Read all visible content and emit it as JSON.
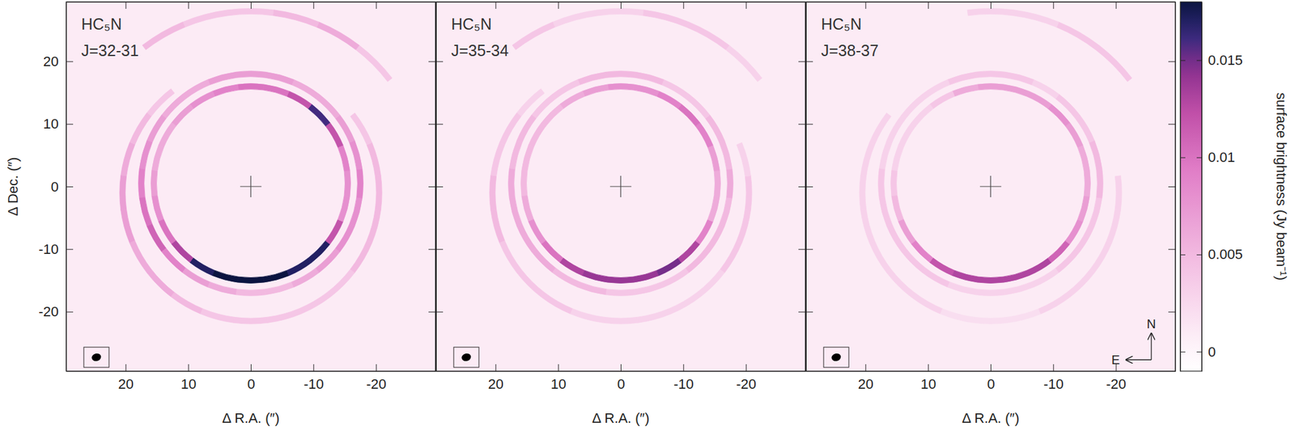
{
  "chart_data": [
    {
      "type": "map",
      "title": "HC₅N",
      "subtitle": "J=32-31",
      "xlabel": "Δ R.A. (″)",
      "ylabel": "Δ Dec. (″)",
      "xlim": [
        29.5,
        -29.5
      ],
      "ylim": [
        -29.5,
        29.5
      ],
      "xticks": [
        20,
        10,
        0,
        -10,
        -20
      ],
      "yticks": [
        -20,
        -10,
        0,
        10,
        20
      ],
      "background_level": 0.001,
      "beam": [
        1.5,
        1.2
      ],
      "position_angles": [
        0,
        15,
        30,
        45,
        60,
        75,
        90,
        105,
        120,
        135,
        150,
        165,
        180,
        195,
        210,
        225,
        240,
        255,
        270,
        285,
        300,
        315,
        330,
        345
      ],
      "shells": [
        {
          "radius": 15.5,
          "center": [
            0,
            0.5
          ],
          "brightness": [
            0.01,
            0.009,
            0.008,
            0.007,
            0.006,
            0.006,
            0.007,
            0.008,
            0.01,
            0.013,
            0.017,
            0.018,
            0.018,
            0.018,
            0.017,
            0.017,
            0.012,
            0.008,
            0.008,
            0.009,
            0.012,
            0.016,
            0.012,
            0.01
          ]
        },
        {
          "radius": 17.5,
          "center": [
            0,
            0.5
          ],
          "brightness": [
            0.007,
            0.007,
            0.006,
            0.006,
            0.007,
            0.008,
            0.009,
            0.01,
            0.011,
            0.009,
            0.007,
            0.006,
            0.005,
            0.005,
            0.006,
            0.007,
            0.008,
            0.008,
            0.009,
            0.008,
            0.007,
            0.006,
            0.006,
            0.007
          ]
        },
        {
          "radius": 20.5,
          "center": [
            0,
            -1
          ],
          "brightness": [
            null,
            null,
            null,
            0.004,
            0.005,
            0.006,
            0.007,
            0.007,
            0.006,
            0.006,
            0.005,
            0.004,
            0.004,
            0.004,
            0.004,
            0.004,
            0.005,
            0.005,
            0.005,
            0.005,
            0.004,
            null,
            null,
            null
          ]
        },
        {
          "radius": 28,
          "center": [
            0,
            0
          ],
          "brightness": [
            0.004,
            0.004,
            0.005,
            null,
            null,
            null,
            null,
            null,
            null,
            null,
            null,
            null,
            null,
            null,
            null,
            null,
            null,
            null,
            null,
            null,
            null,
            0.004,
            0.006,
            0.005
          ]
        }
      ]
    },
    {
      "type": "map",
      "title": "HC₅N",
      "subtitle": "J=35-34",
      "xlabel": "Δ R.A. (″)",
      "tick_labels": "x",
      "xlim": [
        29.5,
        -29.5
      ],
      "ylim": [
        -29.5,
        29.5
      ],
      "xticks": [
        20,
        10,
        0,
        -10,
        -20
      ],
      "yticks": [
        -20,
        -10,
        0,
        10,
        20
      ],
      "background_level": 0.001,
      "beam": [
        1.5,
        1.2
      ],
      "position_angles": [
        0,
        15,
        30,
        45,
        60,
        75,
        90,
        105,
        120,
        135,
        150,
        165,
        180,
        195,
        210,
        225,
        240,
        255,
        270,
        285,
        300,
        315,
        330,
        345
      ],
      "shells": [
        {
          "radius": 15.5,
          "center": [
            0,
            0.5
          ],
          "brightness": [
            0.008,
            0.007,
            0.006,
            0.005,
            0.005,
            0.005,
            0.005,
            0.006,
            0.008,
            0.01,
            0.013,
            0.014,
            0.014,
            0.014,
            0.015,
            0.013,
            0.009,
            0.006,
            0.006,
            0.007,
            0.009,
            0.01,
            0.009,
            0.008
          ]
        },
        {
          "radius": 17.5,
          "center": [
            0,
            0.5
          ],
          "brightness": [
            0.005,
            0.005,
            0.004,
            0.004,
            0.005,
            0.005,
            0.006,
            0.006,
            0.006,
            0.006,
            0.005,
            0.005,
            0.004,
            0.004,
            0.004,
            0.005,
            0.005,
            0.005,
            0.006,
            0.005,
            0.005,
            0.004,
            0.004,
            0.005
          ]
        },
        {
          "radius": 20.5,
          "center": [
            0,
            -1
          ],
          "brightness": [
            null,
            null,
            null,
            0.003,
            0.004,
            0.004,
            0.005,
            0.005,
            0.004,
            0.004,
            0.004,
            0.003,
            0.003,
            0.003,
            0.003,
            0.003,
            0.004,
            0.004,
            0.004,
            0.003,
            null,
            null,
            null,
            null
          ]
        },
        {
          "radius": 28,
          "center": [
            0,
            0
          ],
          "brightness": [
            0.003,
            0.003,
            0.004,
            null,
            null,
            null,
            null,
            null,
            null,
            null,
            null,
            null,
            null,
            null,
            null,
            null,
            null,
            null,
            null,
            null,
            null,
            0.003,
            0.004,
            0.004
          ]
        }
      ]
    },
    {
      "type": "map",
      "title": "HC₅N",
      "subtitle": "J=38-37",
      "xlabel": "Δ R.A. (″)",
      "tick_labels": "x",
      "xlim": [
        29.5,
        -29.5
      ],
      "ylim": [
        -29.5,
        29.5
      ],
      "xticks": [
        20,
        10,
        0,
        -10,
        -20
      ],
      "yticks": [
        -20,
        -10,
        0,
        10,
        20
      ],
      "background_level": 0.001,
      "beam": [
        1.5,
        1.2
      ],
      "compass": {
        "north": "N",
        "east": "E"
      },
      "position_angles": [
        0,
        15,
        30,
        45,
        60,
        75,
        90,
        105,
        120,
        135,
        150,
        165,
        180,
        195,
        210,
        225,
        240,
        255,
        270,
        285,
        300,
        315,
        330,
        345
      ],
      "shells": [
        {
          "radius": 15.5,
          "center": [
            0,
            0.5
          ],
          "brightness": [
            0.007,
            0.006,
            0.004,
            0.003,
            0.003,
            0.003,
            0.004,
            0.005,
            0.007,
            0.009,
            0.012,
            0.013,
            0.013,
            0.013,
            0.013,
            0.011,
            0.008,
            0.007,
            0.006,
            0.006,
            0.007,
            0.008,
            0.007,
            0.007
          ]
        },
        {
          "radius": 17.5,
          "center": [
            0,
            0.5
          ],
          "brightness": [
            0.004,
            0.004,
            0.003,
            0.003,
            0.003,
            0.003,
            0.004,
            0.004,
            0.004,
            0.004,
            0.004,
            0.003,
            0.003,
            0.003,
            0.003,
            0.004,
            0.004,
            0.004,
            0.005,
            0.005,
            0.004,
            0.004,
            0.003,
            0.004
          ]
        },
        {
          "radius": 20.5,
          "center": [
            0,
            -1
          ],
          "brightness": [
            null,
            null,
            null,
            null,
            0.003,
            0.003,
            0.003,
            0.003,
            0.003,
            0.003,
            0.003,
            0.002,
            0.002,
            0.002,
            0.003,
            0.003,
            0.003,
            0.003,
            0.003,
            null,
            null,
            null,
            null,
            null
          ]
        },
        {
          "radius": 28,
          "center": [
            0,
            0
          ],
          "brightness": [
            0.003,
            null,
            null,
            null,
            null,
            null,
            null,
            null,
            null,
            null,
            null,
            null,
            null,
            null,
            null,
            null,
            null,
            null,
            null,
            null,
            null,
            0.004,
            0.004,
            0.003
          ]
        }
      ]
    }
  ],
  "colorbar": {
    "label": "surface brightness (Jy beam⁻¹)",
    "lim": [
      -0.001,
      0.018
    ],
    "ticks": [
      0,
      0.005,
      0.01,
      0.015
    ]
  }
}
